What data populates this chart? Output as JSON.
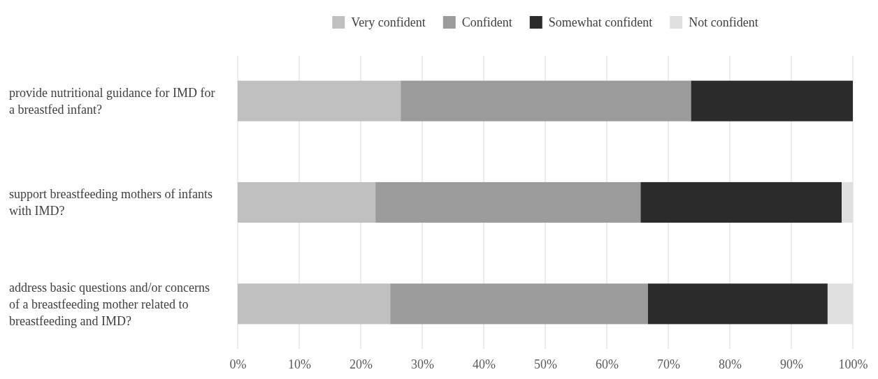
{
  "chart_data": {
    "type": "bar",
    "orientation": "horizontal",
    "stacked": true,
    "categories": [
      "provide nutritional guidance for IMD for a breastfed infant?",
      "support breastfeeding mothers of infants with IMD?",
      "address basic questions and/or concerns of a breastfeeding mother related to breastfeeding and IMD?"
    ],
    "series": [
      {
        "name": "Very confident",
        "color": "#c0c0c0",
        "values": [
          26.5,
          22.4,
          24.8
        ]
      },
      {
        "name": "Confident",
        "color": "#9b9b9b",
        "values": [
          47.2,
          43.1,
          41.9
        ]
      },
      {
        "name": "Somewhat confident",
        "color": "#2b2b2b",
        "values": [
          26.3,
          32.7,
          29.2
        ]
      },
      {
        "name": "Not confident",
        "color": "#e0e0e0",
        "values": [
          0,
          1.8,
          4.1
        ]
      }
    ],
    "xlim": [
      0,
      100
    ],
    "xticks": [
      {
        "value": 0,
        "label": "0%"
      },
      {
        "value": 10,
        "label": "10%"
      },
      {
        "value": 20,
        "label": "20%"
      },
      {
        "value": 30,
        "label": "30%"
      },
      {
        "value": 40,
        "label": "40%"
      },
      {
        "value": 50,
        "label": "50%"
      },
      {
        "value": 60,
        "label": "60%"
      },
      {
        "value": 70,
        "label": "70%"
      },
      {
        "value": 80,
        "label": "80%"
      },
      {
        "value": 90,
        "label": "90%"
      },
      {
        "value": 100,
        "label": "100%"
      }
    ],
    "grid": "x",
    "legend": "top"
  }
}
